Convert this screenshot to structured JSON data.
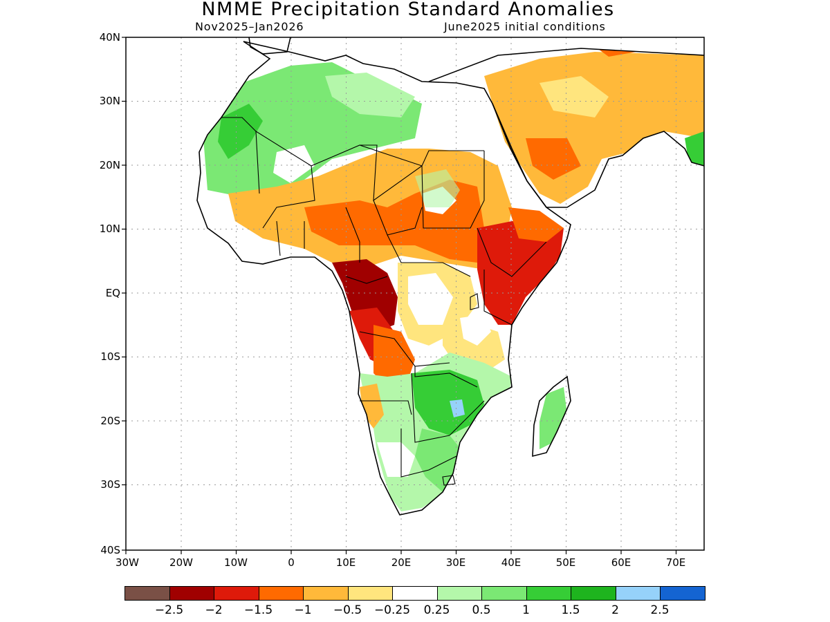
{
  "title": "NMME Precipitation Standard Anomalies",
  "subtitle_left": "Nov2025–Jan2026",
  "subtitle_right": "June2025 initial conditions",
  "lat_labels": [
    "40N",
    "30N",
    "20N",
    "10N",
    "EQ",
    "10S",
    "20S",
    "30S",
    "40S"
  ],
  "lon_labels": [
    "30W",
    "20W",
    "10W",
    "0",
    "10E",
    "20E",
    "30E",
    "40E",
    "50E",
    "60E",
    "70E"
  ],
  "colorbar": {
    "colors": [
      "#7a5046",
      "#a00000",
      "#de1a0a",
      "#ff6a00",
      "#ffb93a",
      "#ffe57e",
      "#ffffff",
      "#b4f7aa",
      "#7be874",
      "#36cd36",
      "#1eb41e",
      "#96d2fa",
      "#1464d2"
    ],
    "labels": [
      "−2.5",
      "−2",
      "−1.5",
      "−1",
      "−0.5",
      "−0.25",
      "0.25",
      "0.5",
      "1",
      "1.5",
      "2",
      "2.5"
    ]
  },
  "map": {
    "extent": {
      "lon_min": -30,
      "lon_max": 75,
      "lat_min": -40,
      "lat_max": 40
    },
    "palette": {
      "ocean": "#ffffff",
      "coast": "#000000",
      "grid": "#9a9a9a"
    }
  }
}
